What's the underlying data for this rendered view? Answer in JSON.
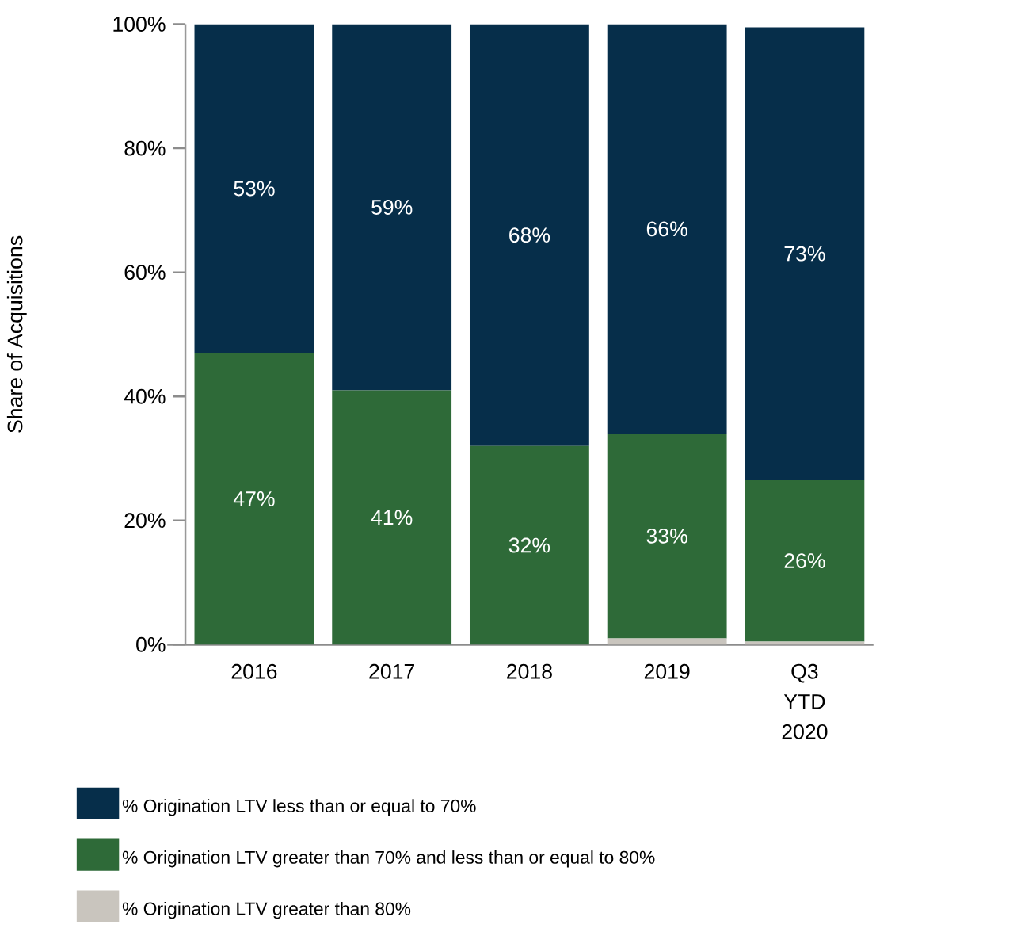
{
  "chart_data": {
    "type": "bar",
    "stacked": true,
    "ylabel": "Share of Acquisitions",
    "categories": [
      "2016",
      "2017",
      "2018",
      "2019",
      "Q3 YTD 2020"
    ],
    "series": [
      {
        "name": "% Origination LTV greater than 80%",
        "color": "#c9c5be",
        "values": [
          0,
          0,
          0,
          1,
          0.5
        ],
        "value_labels": [
          null,
          null,
          null,
          null,
          null
        ]
      },
      {
        "name": "% Origination LTV greater than 70% and less than or equal to 80%",
        "color": "#2e6a38",
        "values": [
          47,
          41,
          32,
          33,
          26
        ],
        "value_labels": [
          "47%",
          "41%",
          "32%",
          "33%",
          "26%"
        ]
      },
      {
        "name": "% Origination LTV less than or equal to 70%",
        "color": "#062e4a",
        "values": [
          53,
          59,
          68,
          66,
          73
        ],
        "value_labels": [
          "53%",
          "59%",
          "68%",
          "66%",
          "73%"
        ]
      }
    ],
    "ylim": [
      0,
      100
    ],
    "yticks": [
      {
        "value": 0,
        "label": "0%"
      },
      {
        "value": 20,
        "label": "20%"
      },
      {
        "value": 40,
        "label": "40%"
      },
      {
        "value": 60,
        "label": "60%"
      },
      {
        "value": 80,
        "label": "80%"
      },
      {
        "value": 100,
        "label": "100%"
      }
    ],
    "legend": "bottom"
  }
}
